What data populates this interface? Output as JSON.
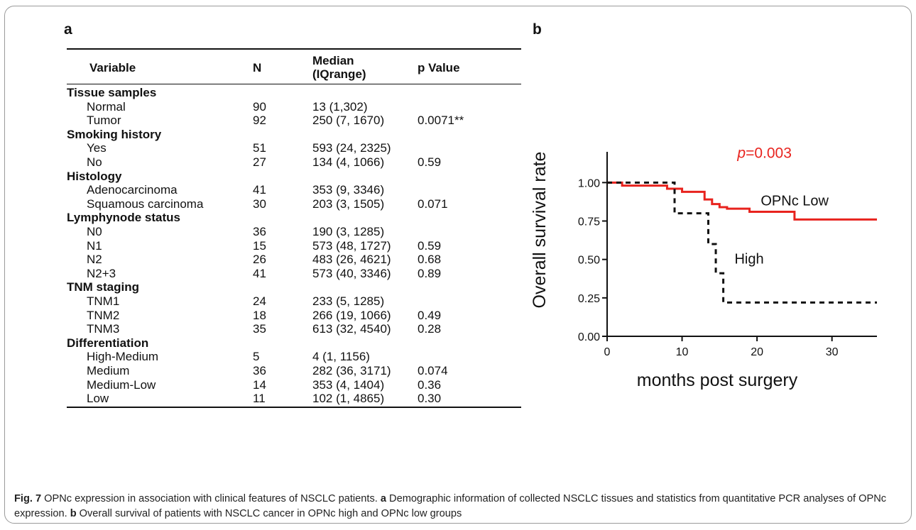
{
  "panels": {
    "a": "a",
    "b": "b"
  },
  "table": {
    "headers": {
      "variable": "Variable",
      "n": "N",
      "median_line1": "Median",
      "median_line2": "(IQrange)",
      "p": "p Value"
    },
    "rows": [
      {
        "type": "group",
        "variable": "Tissue samples"
      },
      {
        "type": "item",
        "variable": "Normal",
        "n": "90",
        "median": "13 (1,302)",
        "p": ""
      },
      {
        "type": "item",
        "variable": "Tumor",
        "n": "92",
        "median": "250 (7, 1670)",
        "p": "0.0071**"
      },
      {
        "type": "group",
        "variable": "Smoking history"
      },
      {
        "type": "item",
        "variable": "Yes",
        "n": "51",
        "median": "593 (24, 2325)",
        "p": ""
      },
      {
        "type": "item",
        "variable": "No",
        "n": "27",
        "median": "134 (4, 1066)",
        "p": "0.59"
      },
      {
        "type": "group",
        "variable": "Histology"
      },
      {
        "type": "item",
        "variable": "Adenocarcinoma",
        "n": "41",
        "median": "353 (9, 3346)",
        "p": ""
      },
      {
        "type": "item",
        "variable": "Squamous carcinoma",
        "n": "30",
        "median": "203 (3, 1505)",
        "p": "0.071"
      },
      {
        "type": "group",
        "variable": "Lymphynode status"
      },
      {
        "type": "item",
        "variable": "N0",
        "n": "36",
        "median": "190 (3, 1285)",
        "p": ""
      },
      {
        "type": "item",
        "variable": "N1",
        "n": "15",
        "median": "573 (48, 1727)",
        "p": "0.59"
      },
      {
        "type": "item",
        "variable": "N2",
        "n": "26",
        "median": "483 (26, 4621)",
        "p": "0.68"
      },
      {
        "type": "item",
        "variable": "N2+3",
        "n": "41",
        "median": "573 (40, 3346)",
        "p": "0.89"
      },
      {
        "type": "group",
        "variable": "TNM staging"
      },
      {
        "type": "item",
        "variable": "TNM1",
        "n": "24",
        "median": "233 (5, 1285)",
        "p": ""
      },
      {
        "type": "item",
        "variable": "TNM2",
        "n": "18",
        "median": "266 (19, 1066)",
        "p": "0.49"
      },
      {
        "type": "item",
        "variable": "TNM3",
        "n": "35",
        "median": "613 (32, 4540)",
        "p": "0.28"
      },
      {
        "type": "group",
        "variable": "Differentiation"
      },
      {
        "type": "item",
        "variable": "High-Medium",
        "n": "5",
        "median": "4 (1, 1156)",
        "p": ""
      },
      {
        "type": "item",
        "variable": "Medium",
        "n": "36",
        "median": "282 (36, 3171)",
        "p": "0.074"
      },
      {
        "type": "item",
        "variable": "Medium-Low",
        "n": "14",
        "median": "353 (4, 1404)",
        "p": "0.36"
      },
      {
        "type": "item",
        "variable": "Low",
        "n": "11",
        "median": "102 (1, 4865)",
        "p": "0.30"
      }
    ]
  },
  "chart_data": {
    "type": "line",
    "xlabel": "months post surgery",
    "ylabel": "Overall survival rate",
    "xlim": [
      0,
      36
    ],
    "ylim": [
      0,
      1.2
    ],
    "xticks": [
      "0",
      "10",
      "20",
      "30"
    ],
    "yticks": [
      "0.00",
      "0.25",
      "0.50",
      "0.75",
      "1.00"
    ],
    "annotation_p_italic": "p",
    "annotation_p_rest": "=0.003",
    "series": [
      {
        "name": "OPNc Low",
        "color": "#e8231e",
        "dashed": false,
        "x": [
          0,
          2,
          8,
          10,
          13,
          14,
          15,
          16,
          19,
          25,
          36
        ],
        "y": [
          1.0,
          0.98,
          0.96,
          0.94,
          0.89,
          0.86,
          0.84,
          0.83,
          0.81,
          0.76,
          0.76
        ]
      },
      {
        "name": "High",
        "color": "#111111",
        "dashed": true,
        "x": [
          0,
          9,
          11.5,
          13.5,
          14.5,
          15.5,
          36
        ],
        "y": [
          1.0,
          0.8,
          0.8,
          0.6,
          0.41,
          0.22,
          0.22
        ]
      }
    ]
  },
  "caption": {
    "label": "Fig. 7",
    "text1": "  OPNc expression in association with clinical features of NSCLC patients. ",
    "a": "a",
    "text2": " Demographic information of collected NSCLC tissues and statistics from quantitative PCR analyses of OPNc expression. ",
    "b": "b",
    "text3": " Overall survival of patients with NSCLC cancer in OPNc high and OPNc low groups"
  }
}
